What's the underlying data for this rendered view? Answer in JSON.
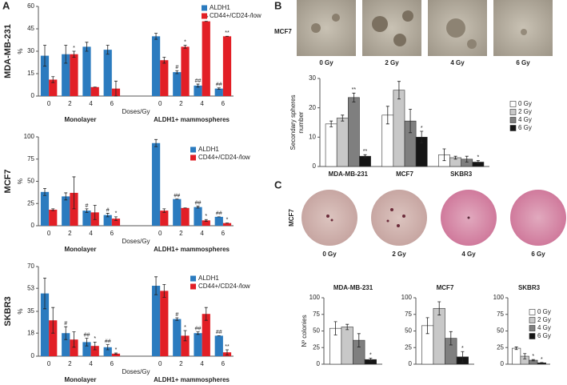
{
  "panel_labels": [
    "A",
    "B",
    "C"
  ],
  "photo_rows": [
    {
      "cell_line": "MCF7",
      "labels": [
        "0 Gy",
        "2 Gy",
        "4 Gy",
        "6 Gy"
      ]
    },
    {
      "cell_line": "MCF7",
      "labels": [
        "0 Gy",
        "2 Gy",
        "4 Gy",
        "6 Gy"
      ]
    }
  ],
  "chart_data": [
    {
      "type": "bar",
      "title": "MDA-MB-231",
      "ylabel": [
        "%"
      ],
      "xlabel": "Doses/Gy",
      "group_labels": [
        "Monolayer",
        "ALDH1+ mammospheres"
      ],
      "categories": [
        "0",
        "2",
        "4",
        "6",
        "0",
        "2",
        "4",
        "6"
      ],
      "ylim": [
        0,
        60
      ],
      "yticks": [
        0,
        15,
        30,
        45,
        60
      ],
      "series": [
        {
          "name": "ALDH1",
          "color": "#2b7bbf",
          "values": [
            27,
            28,
            33,
            31,
            40,
            16,
            7,
            5
          ],
          "errors": [
            7,
            6,
            3,
            3,
            2,
            1,
            1,
            0.5
          ],
          "annotations": [
            null,
            null,
            null,
            null,
            null,
            "#",
            "##",
            "##"
          ]
        },
        {
          "name": "CD44+/CD24-/low",
          "color": "#e21f26",
          "values": [
            11,
            28,
            6,
            5,
            24,
            33,
            50,
            40
          ],
          "errors": [
            2,
            2,
            0,
            5,
            2,
            1,
            0,
            0
          ],
          "annotations": [
            null,
            "*",
            null,
            null,
            null,
            "*",
            "**",
            "**"
          ]
        }
      ]
    },
    {
      "type": "bar",
      "title": "MCF7",
      "ylabel": [
        "%"
      ],
      "xlabel": "Doses/Gy",
      "group_labels": [
        "Monolayer",
        "ALDH1+ mammospheres"
      ],
      "categories": [
        "0",
        "2",
        "4",
        "6",
        "0",
        "2",
        "4",
        "6"
      ],
      "ylim": [
        0,
        100
      ],
      "yticks": [
        0,
        25,
        50,
        75,
        100
      ],
      "series": [
        {
          "name": "ALDH1",
          "color": "#2b7bbf",
          "values": [
            38,
            33,
            17,
            12,
            93,
            30,
            21,
            10
          ],
          "errors": [
            4,
            4,
            2,
            2,
            4,
            0,
            1,
            0
          ],
          "annotations": [
            null,
            null,
            "#",
            "#",
            null,
            "##",
            "##",
            "##"
          ]
        },
        {
          "name": "CD44+/CD24-/low",
          "color": "#e21f26",
          "values": [
            18,
            37,
            15,
            8,
            17,
            20,
            6,
            3
          ],
          "errors": [
            1,
            18,
            8,
            2,
            2,
            0,
            1,
            0
          ],
          "annotations": [
            null,
            null,
            null,
            "*",
            null,
            null,
            "*",
            "*"
          ]
        }
      ]
    },
    {
      "type": "bar",
      "title": "SKBR3",
      "ylabel": [
        "%"
      ],
      "xlabel": "Doses/Gy",
      "group_labels": [
        "Monolayer",
        "ALDH1+ mammospheres"
      ],
      "categories": [
        "0",
        "2",
        "4",
        "6",
        "0",
        "2",
        "4",
        "6"
      ],
      "ylim": [
        0,
        70
      ],
      "yticks": [
        0,
        18,
        35,
        53,
        70
      ],
      "series": [
        {
          "name": "ALDH1",
          "color": "#2b7bbf",
          "values": [
            49,
            18,
            11,
            7,
            55,
            29,
            18,
            16
          ],
          "errors": [
            12,
            5,
            3,
            2,
            7,
            1,
            1,
            0
          ],
          "annotations": [
            null,
            "#",
            "##",
            "##",
            null,
            "#",
            "##",
            "##"
          ]
        },
        {
          "name": "CD44+/CD24-/low",
          "color": "#e21f26",
          "values": [
            28,
            13,
            8,
            2,
            51,
            16,
            33,
            3
          ],
          "errors": [
            10,
            6,
            3,
            0.5,
            5,
            4,
            5,
            2
          ],
          "annotations": [
            null,
            null,
            "*",
            "*",
            null,
            "*",
            null,
            "**"
          ]
        }
      ]
    },
    {
      "type": "bar",
      "ylabel": [
        "Secondary spheres",
        "number"
      ],
      "categories": [
        "MDA-MB-231",
        "MCF7",
        "SKBR3"
      ],
      "ylim": [
        0,
        30
      ],
      "yticks": [
        0,
        10,
        20,
        30
      ],
      "series": [
        {
          "name": "0 Gy",
          "color": "#ffffff",
          "values": [
            14.5,
            17.5,
            4
          ],
          "errors": [
            1,
            3,
            2
          ],
          "annotations": [
            null,
            null,
            null
          ]
        },
        {
          "name": "2 Gy",
          "color": "#c8c8c8",
          "values": [
            16.5,
            26,
            3
          ],
          "errors": [
            1,
            3,
            0.5
          ],
          "annotations": [
            null,
            null,
            null
          ]
        },
        {
          "name": "4 Gy",
          "color": "#7f7f7f",
          "values": [
            23.5,
            15.5,
            2.5
          ],
          "errors": [
            1.5,
            4,
            1
          ],
          "annotations": [
            "**",
            null,
            null
          ]
        },
        {
          "name": "6 Gy",
          "color": "#151515",
          "values": [
            3.5,
            10,
            1.5
          ],
          "errors": [
            0.5,
            2,
            0.5
          ],
          "annotations": [
            "**",
            "*",
            "*"
          ]
        }
      ]
    },
    {
      "type": "bar",
      "title": "MDA-MB-231",
      "ylabel": [
        "Nº colonies"
      ],
      "ylim": [
        0,
        100
      ],
      "yticks": [
        0,
        25,
        50,
        75,
        100
      ],
      "series": [
        {
          "color": "#ffffff",
          "values": [
            54
          ],
          "errors": [
            10
          ],
          "annotations": [
            null
          ]
        },
        {
          "color": "#c8c8c8",
          "values": [
            56
          ],
          "errors": [
            4
          ],
          "annotations": [
            null
          ]
        },
        {
          "color": "#7f7f7f",
          "values": [
            36
          ],
          "errors": [
            10
          ],
          "annotations": [
            null
          ]
        },
        {
          "color": "#151515",
          "values": [
            7
          ],
          "errors": [
            2
          ],
          "annotations": [
            "*"
          ]
        }
      ]
    },
    {
      "type": "bar",
      "title": "MCF7",
      "ylim": [
        0,
        100
      ],
      "yticks": [
        0,
        25,
        50,
        75,
        100
      ],
      "series": [
        {
          "color": "#ffffff",
          "values": [
            58
          ],
          "errors": [
            12
          ],
          "annotations": [
            null
          ]
        },
        {
          "color": "#c8c8c8",
          "values": [
            84
          ],
          "errors": [
            10
          ],
          "annotations": [
            null
          ]
        },
        {
          "color": "#7f7f7f",
          "values": [
            39
          ],
          "errors": [
            10
          ],
          "annotations": [
            null
          ]
        },
        {
          "color": "#151515",
          "values": [
            11
          ],
          "errors": [
            8
          ],
          "annotations": [
            "*"
          ]
        }
      ]
    },
    {
      "type": "bar",
      "title": "SKBR3",
      "ylim": [
        0,
        100
      ],
      "yticks": [
        0,
        25,
        50,
        75,
        100
      ],
      "series": [
        {
          "name": "0 Gy",
          "color": "#ffffff",
          "values": [
            24
          ],
          "errors": [
            2
          ],
          "annotations": [
            null
          ]
        },
        {
          "name": "2 Gy",
          "color": "#c8c8c8",
          "values": [
            12
          ],
          "errors": [
            4
          ],
          "annotations": [
            null
          ]
        },
        {
          "name": "4 Gy",
          "color": "#7f7f7f",
          "values": [
            6
          ],
          "errors": [
            1
          ],
          "annotations": [
            "*"
          ]
        },
        {
          "name": "6 Gy",
          "color": "#151515",
          "values": [
            2
          ],
          "errors": [
            0.5
          ],
          "annotations": [
            "*"
          ]
        }
      ]
    }
  ]
}
